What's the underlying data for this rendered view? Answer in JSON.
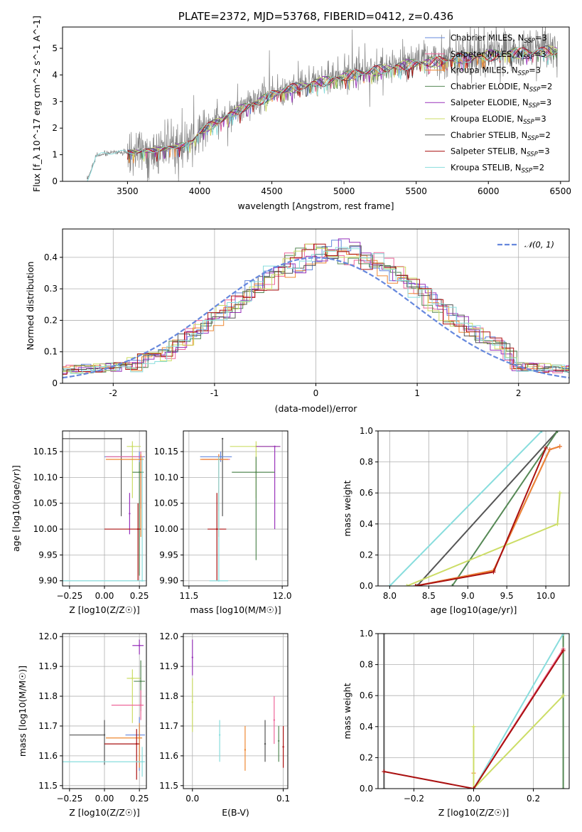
{
  "chart_data": [
    {
      "id": "spectrum",
      "type": "line",
      "title": "PLATE=2372, MJD=53768, FIBERID=0412, z=0.436",
      "xlabel": "wavelength [Angstrom, rest frame]",
      "ylabel": "Flux [f_λ 10^-17 erg cm^-2 s^-1 A^-1]",
      "xlim": [
        3050,
        6560
      ],
      "ylim": [
        0,
        5.8
      ],
      "xticks": [
        3500,
        4000,
        4500,
        5000,
        5500,
        6000,
        6500
      ],
      "yticks": [
        0,
        1,
        2,
        3,
        4,
        5
      ],
      "grid": false,
      "legend_position": "right",
      "legend": [
        {
          "name": "Chabrier MILES, N_SSP=3",
          "color": "#6688dd"
        },
        {
          "name": "Salpeter MILES, N_SSP=3",
          "color": "#ee6699"
        },
        {
          "name": "Kroupa MILES, N_SSP=3",
          "color": "#ee8833"
        },
        {
          "name": "Chabrier ELODIE, N_SSP=2",
          "color": "#558855"
        },
        {
          "name": "Salpeter ELODIE, N_SSP=3",
          "color": "#9933bb"
        },
        {
          "name": "Kroupa ELODIE, N_SSP=3",
          "color": "#ccdd66"
        },
        {
          "name": "Chabrier STELIB, N_SSP=2",
          "color": "#555555"
        },
        {
          "name": "Salpeter STELIB, N_SSP=3",
          "color": "#aa1111"
        },
        {
          "name": "Kroupa STELIB, N_SSP=2",
          "color": "#88dddd"
        }
      ],
      "model_continuum": {
        "x": [
          3220,
          3280,
          3400,
          3500,
          3600,
          3700,
          3800,
          3900,
          3950,
          4000,
          4100,
          4200,
          4300,
          4400,
          4500,
          4600,
          4700,
          4800,
          4900,
          5000,
          5100,
          5200,
          5300,
          5400,
          5500,
          5600,
          5700,
          5800,
          5900,
          6000,
          6100,
          6200,
          6300,
          6400,
          6500
        ],
        "y": [
          0.0,
          0.95,
          1.1,
          1.1,
          1.15,
          1.2,
          1.3,
          1.4,
          1.5,
          1.9,
          2.2,
          2.5,
          2.8,
          3.0,
          3.3,
          3.5,
          3.6,
          3.75,
          3.85,
          4.0,
          4.1,
          4.2,
          4.3,
          4.4,
          4.5,
          4.55,
          4.6,
          4.7,
          4.75,
          4.8,
          4.85,
          4.9,
          4.9,
          4.95,
          5.0
        ]
      },
      "observed_color": "#808080"
    },
    {
      "id": "residuals",
      "type": "line",
      "xlabel": "(data-model)/error",
      "ylabel": "Normed distribution",
      "xlim": [
        -2.5,
        2.5
      ],
      "ylim": [
        0,
        0.49
      ],
      "xticks": [
        -2,
        -1,
        0,
        1,
        2
      ],
      "yticks": [
        0.0,
        0.1,
        0.2,
        0.3,
        0.4
      ],
      "grid": true,
      "legend_position": "top-right",
      "legend": [
        {
          "name": "𝒩(0, 1)",
          "color": "#6688dd",
          "style": "dashed"
        }
      ],
      "series_colors": [
        "#6688dd",
        "#ee6699",
        "#ee8833",
        "#558855",
        "#9933bb",
        "#ccdd66",
        "#555555",
        "#aa1111",
        "#88dddd"
      ]
    },
    {
      "id": "age-vs-Z",
      "type": "scatter",
      "xlabel": "Z [log10(Z/Z☉)]",
      "ylabel": "age [log10(age/yr)]",
      "xlim": [
        -0.3,
        0.3
      ],
      "ylim": [
        9.89,
        10.19
      ],
      "xticks": [
        -0.25,
        0.0,
        0.25
      ],
      "xticklabels": [
        "−0.25",
        "0.00",
        "0.25"
      ],
      "yticks": [
        9.9,
        9.95,
        10.0,
        10.05,
        10.1,
        10.15
      ],
      "yticklabels": [
        "9.90",
        "9.95",
        "10.00",
        "10.05",
        "10.10",
        "10.15"
      ],
      "grid": true,
      "points": [
        {
          "x": 0.12,
          "y": 10.175,
          "xerr": [
            0.42,
            0.0
          ],
          "yerr": [
            0.15,
            0.0
          ],
          "color": "#555555"
        },
        {
          "x": 0.2,
          "y": 10.16,
          "xerr": [
            0.04,
            0.06
          ],
          "yerr": [
            0.1,
            0.01
          ],
          "color": "#ccdd66"
        },
        {
          "x": 0.25,
          "y": 10.14,
          "xerr": [
            0.25,
            0.04
          ],
          "yerr": [
            0.01,
            0.01
          ],
          "color": "#6688dd"
        },
        {
          "x": 0.26,
          "y": 10.14,
          "xerr": [
            0.25,
            0.02
          ],
          "yerr": [
            0.1,
            0.01
          ],
          "color": "#ee6699"
        },
        {
          "x": 0.26,
          "y": 10.135,
          "xerr": [
            0.25,
            0.02
          ],
          "yerr": [
            0.15,
            0.01
          ],
          "color": "#ee8833"
        },
        {
          "x": 0.25,
          "y": 10.11,
          "xerr": [
            0.05,
            0.03
          ],
          "yerr": [
            0.2,
            0.02
          ],
          "color": "#558855"
        },
        {
          "x": 0.18,
          "y": 10.03,
          "xerr": [
            0.0,
            0.0
          ],
          "yerr": [
            0.04,
            0.04
          ],
          "color": "#9933bb"
        },
        {
          "x": 0.24,
          "y": 10.0,
          "xerr": [
            0.24,
            0.02
          ],
          "yerr": [
            0.1,
            0.05
          ],
          "color": "#aa1111"
        },
        {
          "x": 0.27,
          "y": 9.9,
          "xerr": [
            0.57,
            0.02
          ],
          "yerr": [
            0.0,
            0.24
          ],
          "color": "#88dddd"
        }
      ]
    },
    {
      "id": "age-vs-mass",
      "type": "scatter",
      "xlabel": "mass [log10(M/M☉)]",
      "xlim": [
        11.47,
        12.03
      ],
      "ylim": [
        9.89,
        10.19
      ],
      "xticks": [
        11.5,
        12.0
      ],
      "xticklabels": [
        "11.5",
        "12.0"
      ],
      "yticks": [
        9.9,
        9.95,
        10.0,
        10.05,
        10.1,
        10.15
      ],
      "yticklabels": [
        "9.90",
        "9.95",
        "10.00",
        "10.05",
        "10.10",
        "10.15"
      ],
      "grid": true,
      "points": [
        {
          "x": 11.68,
          "y": 10.175,
          "xerr": [
            0.0,
            0.0
          ],
          "yerr": [
            0.15,
            0.0
          ],
          "color": "#555555"
        },
        {
          "x": 11.86,
          "y": 10.16,
          "xerr": [
            0.14,
            0.13
          ],
          "yerr": [
            0.1,
            0.01
          ],
          "color": "#ccdd66"
        },
        {
          "x": 11.96,
          "y": 10.16,
          "xerr": [
            0.1,
            0.03
          ],
          "yerr": [
            0.16,
            0.0
          ],
          "color": "#9933bb"
        },
        {
          "x": 11.67,
          "y": 10.14,
          "xerr": [
            0.11,
            0.06
          ],
          "yerr": [
            0.01,
            0.01
          ],
          "color": "#6688dd"
        },
        {
          "x": 11.66,
          "y": 10.135,
          "xerr": [
            0.09,
            0.06
          ],
          "yerr": [
            0.1,
            0.01
          ],
          "color": "#ee6699"
        },
        {
          "x": 11.66,
          "y": 10.135,
          "xerr": [
            0.1,
            0.05
          ],
          "yerr": [
            0.15,
            0.01
          ],
          "color": "#ee8833"
        },
        {
          "x": 11.86,
          "y": 10.11,
          "xerr": [
            0.13,
            0.1
          ],
          "yerr": [
            0.17,
            0.03
          ],
          "color": "#558855"
        },
        {
          "x": 11.65,
          "y": 10.0,
          "xerr": [
            0.05,
            0.05
          ],
          "yerr": [
            0.1,
            0.07
          ],
          "color": "#aa1111"
        },
        {
          "x": 11.66,
          "y": 9.9,
          "xerr": [
            0.05,
            0.05
          ],
          "yerr": [
            0.0,
            0.24
          ],
          "color": "#88dddd"
        }
      ]
    },
    {
      "id": "mass-weight-vs-age",
      "type": "line",
      "xlabel": "age [log10(age/yr)]",
      "ylabel": "mass weight",
      "xlim": [
        7.85,
        10.3
      ],
      "ylim": [
        0,
        1
      ],
      "xticks": [
        8.0,
        8.5,
        9.0,
        9.5,
        10.0
      ],
      "xticklabels": [
        "8.0",
        "8.5",
        "9.0",
        "9.5",
        "10.0"
      ],
      "yticks": [
        0.0,
        0.2,
        0.4,
        0.6,
        0.8,
        1.0
      ],
      "yticklabels": [
        "0.0",
        "0.2",
        "0.4",
        "0.6",
        "0.8",
        "1.0"
      ],
      "grid": true,
      "series": [
        {
          "color": "#88dddd",
          "points": [
            [
              8.0,
              0.0
            ],
            [
              9.95,
              1.0
            ]
          ]
        },
        {
          "color": "#555555",
          "points": [
            [
              8.35,
              0.0
            ],
            [
              10.15,
              1.0
            ]
          ]
        },
        {
          "color": "#558855",
          "points": [
            [
              8.8,
              0.0
            ],
            [
              10.15,
              1.0
            ]
          ]
        },
        {
          "color": "#6688dd",
          "points": [
            [
              8.33,
              0.0
            ],
            [
              9.33,
              0.1
            ],
            [
              10.05,
              0.88
            ],
            [
              10.18,
              0.9
            ]
          ]
        },
        {
          "color": "#ee6699",
          "points": [
            [
              8.33,
              0.0
            ],
            [
              9.33,
              0.1
            ],
            [
              10.05,
              0.88
            ],
            [
              10.18,
              0.9
            ]
          ]
        },
        {
          "color": "#ee8833",
          "points": [
            [
              8.33,
              0.0
            ],
            [
              9.33,
              0.1
            ],
            [
              10.05,
              0.88
            ],
            [
              10.18,
              0.9
            ]
          ]
        },
        {
          "color": "#ccdd66",
          "points": [
            [
              8.22,
              0.0
            ],
            [
              10.15,
              0.4
            ],
            [
              10.18,
              0.6
            ]
          ]
        },
        {
          "color": "#aa1111",
          "points": [
            [
              8.33,
              0.0
            ],
            [
              9.33,
              0.09
            ],
            [
              10.0,
              0.89
            ]
          ]
        }
      ]
    },
    {
      "id": "mass-vs-Z",
      "type": "scatter",
      "xlabel": "Z [log10(Z/Z☉)]",
      "ylabel": "mass [log10(M/M☉)]",
      "xlim": [
        -0.3,
        0.3
      ],
      "ylim": [
        11.49,
        12.01
      ],
      "xticks": [
        -0.25,
        0.0,
        0.25
      ],
      "xticklabels": [
        "−0.25",
        "0.00",
        "0.25"
      ],
      "yticks": [
        11.5,
        11.6,
        11.7,
        11.8,
        11.9,
        12.0
      ],
      "yticklabels": [
        "11.5",
        "11.6",
        "11.7",
        "11.8",
        "11.9",
        "12.0"
      ],
      "grid": true,
      "points": [
        {
          "x": 0.25,
          "y": 11.97,
          "xerr": [
            0.05,
            0.03
          ],
          "yerr": [
            0.03,
            0.02
          ],
          "color": "#9933bb"
        },
        {
          "x": 0.2,
          "y": 11.86,
          "xerr": [
            0.04,
            0.06
          ],
          "yerr": [
            0.15,
            0.03
          ],
          "color": "#ccdd66"
        },
        {
          "x": 0.26,
          "y": 11.85,
          "xerr": [
            0.05,
            0.03
          ],
          "yerr": [
            0.1,
            0.07
          ],
          "color": "#558855"
        },
        {
          "x": 0.26,
          "y": 11.77,
          "xerr": [
            0.21,
            0.02
          ],
          "yerr": [
            0.05,
            0.05
          ],
          "color": "#ee6699"
        },
        {
          "x": 0.25,
          "y": 11.67,
          "xerr": [
            0.1,
            0.04
          ],
          "yerr": [
            0.12,
            0.06
          ],
          "color": "#6688dd"
        },
        {
          "x": 0.25,
          "y": 11.66,
          "xerr": [
            0.24,
            0.02
          ],
          "yerr": [
            0.1,
            0.05
          ],
          "color": "#ee8833"
        },
        {
          "x": 0.0,
          "y": 11.67,
          "xerr": [
            0.25,
            0.0
          ],
          "yerr": [
            0.1,
            0.05
          ],
          "color": "#555555"
        },
        {
          "x": 0.23,
          "y": 11.64,
          "xerr": [
            0.23,
            0.02
          ],
          "yerr": [
            0.12,
            0.05
          ],
          "color": "#aa1111"
        },
        {
          "x": 0.27,
          "y": 11.58,
          "xerr": [
            0.57,
            0.02
          ],
          "yerr": [
            0.05,
            0.05
          ],
          "color": "#88dddd"
        }
      ]
    },
    {
      "id": "mass-vs-EBV",
      "type": "scatter",
      "xlabel": "E(B-V)",
      "xlim": [
        -0.01,
        0.105
      ],
      "ylim": [
        11.49,
        12.01
      ],
      "xticks": [
        0.0,
        0.1
      ],
      "xticklabels": [
        "0.0",
        "0.1"
      ],
      "yticks": [
        11.5,
        11.6,
        11.7,
        11.8,
        11.9,
        12.0
      ],
      "yticklabels": [
        "11.5",
        "11.6",
        "11.7",
        "11.8",
        "11.9",
        "12.0"
      ],
      "grid": true,
      "points": [
        {
          "x": 0.0,
          "y": 11.93,
          "yerr": [
            0.06,
            0.06
          ],
          "color": "#9933bb"
        },
        {
          "x": 0.0,
          "y": 11.78,
          "yerr": [
            0.1,
            0.08
          ],
          "color": "#ccdd66"
        },
        {
          "x": 0.03,
          "y": 11.67,
          "yerr": [
            0.09,
            0.05
          ],
          "color": "#88dddd"
        },
        {
          "x": 0.058,
          "y": 11.62,
          "yerr": [
            0.07,
            0.08
          ],
          "color": "#ee8833"
        },
        {
          "x": 0.08,
          "y": 11.64,
          "yerr": [
            0.06,
            0.08
          ],
          "color": "#555555"
        },
        {
          "x": 0.09,
          "y": 11.72,
          "yerr": [
            0.08,
            0.08
          ],
          "color": "#ee6699"
        },
        {
          "x": 0.095,
          "y": 11.65,
          "yerr": [
            0.07,
            0.05
          ],
          "color": "#558855"
        },
        {
          "x": 0.1,
          "y": 11.63,
          "yerr": [
            0.07,
            0.07
          ],
          "color": "#aa1111"
        }
      ]
    },
    {
      "id": "mass-weight-vs-Z",
      "type": "line",
      "xlabel": "Z [log10(Z/Z☉)]",
      "ylabel": "mass weight",
      "xlim": [
        -0.32,
        0.32
      ],
      "ylim": [
        0,
        1
      ],
      "xticks": [
        -0.2,
        0.0,
        0.2
      ],
      "xticklabels": [
        "−0.2",
        "0.0",
        "0.2"
      ],
      "yticks": [
        0.0,
        0.2,
        0.4,
        0.6,
        0.8,
        1.0
      ],
      "yticklabels": [
        "0.0",
        "0.2",
        "0.4",
        "0.6",
        "0.8",
        "1.0"
      ],
      "grid": true,
      "series": [
        {
          "color": "#555555",
          "points": [
            [
              -0.3,
              0.0
            ],
            [
              -0.3,
              1.0
            ]
          ]
        },
        {
          "color": "#558855",
          "points": [
            [
              0.3,
              0.0
            ],
            [
              0.3,
              1.0
            ]
          ]
        },
        {
          "color": "#88dddd",
          "points": [
            [
              0.0,
              0.0
            ],
            [
              0.3,
              1.0
            ]
          ]
        },
        {
          "color": "#ee8833",
          "points": [
            [
              0.0,
              0.0
            ],
            [
              0.0,
              0.1
            ],
            [
              0.0,
              0.0
            ],
            [
              0.3,
              0.9
            ]
          ]
        },
        {
          "color": "#ee6699",
          "points": [
            [
              0.0,
              0.0
            ],
            [
              0.3,
              0.9
            ]
          ]
        },
        {
          "color": "#ccdd66",
          "points": [
            [
              0.0,
              0.0
            ],
            [
              0.0,
              0.4
            ],
            [
              0.0,
              0.0
            ],
            [
              0.3,
              0.6
            ]
          ]
        },
        {
          "color": "#aa1111",
          "points": [
            [
              -0.3,
              0.11
            ],
            [
              0.0,
              0.0
            ],
            [
              0.3,
              0.89
            ]
          ]
        }
      ]
    }
  ]
}
